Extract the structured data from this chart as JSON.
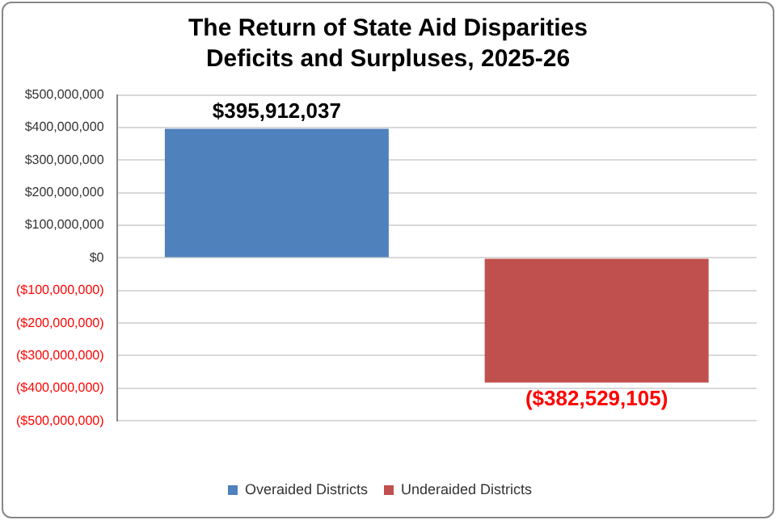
{
  "chart_data": {
    "type": "bar",
    "title": "The Return of State Aid Disparities\nDeficits and Surpluses, 2025-26",
    "categories": [
      null,
      null
    ],
    "series": [
      {
        "name": "Overaided Districts",
        "color": "#4f81bd",
        "values": [
          395912037,
          null
        ],
        "value_labels": [
          "$395,912,037",
          null
        ]
      },
      {
        "name": "Underaided Districts",
        "color": "#c0504d",
        "values": [
          null,
          -382529105
        ],
        "value_labels": [
          null,
          "($382,529,105)"
        ]
      }
    ],
    "ylim": [
      -500000000,
      500000000
    ],
    "yticks": [
      {
        "value": -500000000,
        "label": "($500,000,000)"
      },
      {
        "value": -400000000,
        "label": "($400,000,000)"
      },
      {
        "value": -300000000,
        "label": "($300,000,000)"
      },
      {
        "value": -200000000,
        "label": "($200,000,000)"
      },
      {
        "value": -100000000,
        "label": "($100,000,000)"
      },
      {
        "value": 0,
        "label": "$0"
      },
      {
        "value": 100000000,
        "label": "$100,000,000"
      },
      {
        "value": 200000000,
        "label": "$200,000,000"
      },
      {
        "value": 300000000,
        "label": "$300,000,000"
      },
      {
        "value": 400000000,
        "label": "$400,000,000"
      },
      {
        "value": 500000000,
        "label": "$500,000,000"
      }
    ],
    "grid": "y",
    "legend": "bottom"
  }
}
